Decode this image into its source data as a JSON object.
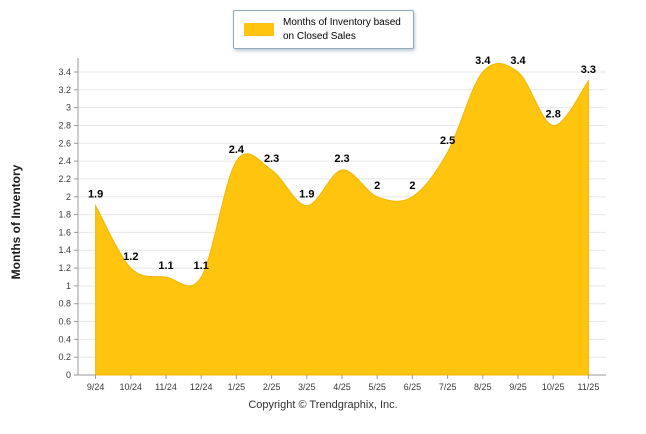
{
  "chart_data": {
    "type": "area",
    "title": "",
    "ylabel": "Months of Inventory",
    "xlabel": "",
    "ylim": [
      0,
      3.4
    ],
    "y_ticks": [
      "0",
      "0.2",
      "0.4",
      "0.6",
      "0.8",
      "1",
      "1.2",
      "1.4",
      "1.6",
      "1.8",
      "2",
      "2.2",
      "2.4",
      "2.6",
      "2.8",
      "3",
      "3.2",
      "3.4"
    ],
    "grid": true,
    "legend_position": "top",
    "area_color": "#FFC40D",
    "area_edge_color": "#F2B705",
    "categories": [
      "9/24",
      "10/24",
      "11/24",
      "12/24",
      "1/25",
      "2/25",
      "3/25",
      "4/25",
      "5/25",
      "6/25",
      "7/25",
      "8/25",
      "9/25",
      "10/25",
      "11/25"
    ],
    "series": [
      {
        "name": "Months of Inventory based on Closed Sales",
        "values": [
          1.9,
          1.2,
          1.1,
          1.1,
          2.4,
          2.3,
          1.9,
          2.3,
          2,
          2,
          2.5,
          3.4,
          3.4,
          2.8,
          3.3
        ],
        "value_labels": [
          "1.9",
          "1.2",
          "1.1",
          "1.1",
          "2.4",
          "2.3",
          "1.9",
          "2.3",
          "2",
          "2",
          "2.5",
          "3.4",
          "3.4",
          "2.8",
          "3.3"
        ]
      }
    ]
  },
  "legend": {
    "line1": "Months of Inventory based",
    "line2": "on Closed Sales"
  },
  "footer": {
    "copyright": "Copyright © Trendgraphix, Inc."
  }
}
